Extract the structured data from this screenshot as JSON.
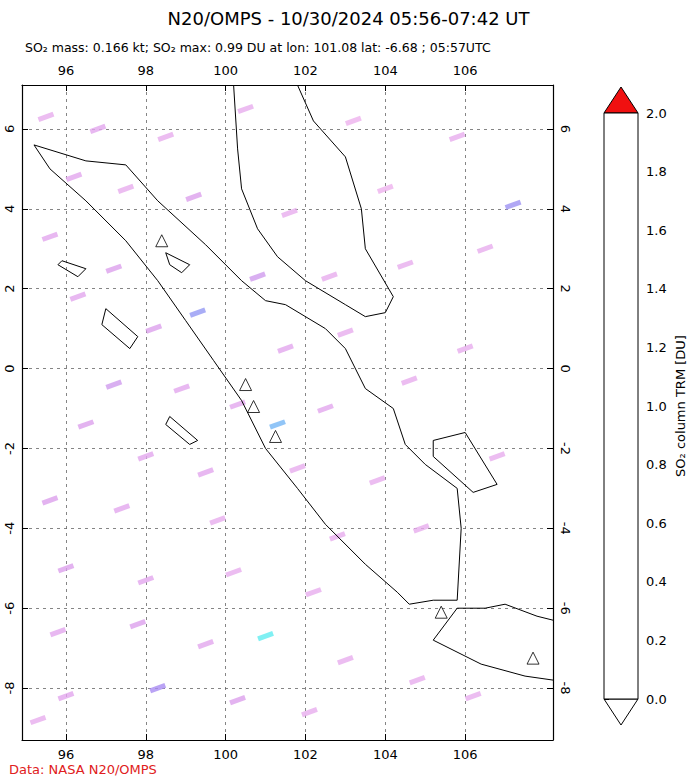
{
  "chart_data": {
    "type": "map",
    "title": "N20/OMPS - 10/30/2024 05:56-07:42 UT",
    "subtitle": "SO₂ mass: 0.166 kt; SO₂ max: 0.99 DU at lon: 101.08 lat: -6.68 ; 05:57UTC",
    "source": "Data: NASA N20/OMPS",
    "xlim": [
      94.9,
      108.2
    ],
    "xticks": [
      96,
      98,
      100,
      102,
      104,
      106
    ],
    "ylim": [
      -9.3,
      7.1
    ],
    "yticks": [
      -8,
      -6,
      -4,
      -2,
      0,
      2,
      4,
      6
    ],
    "grid": true,
    "coastlines": [
      [
        [
          95.2,
          5.6
        ],
        [
          95.6,
          5.0
        ],
        [
          96.5,
          4.2
        ],
        [
          97.5,
          3.2
        ],
        [
          98.3,
          2.2
        ],
        [
          99.0,
          1.2
        ],
        [
          99.7,
          0.2
        ],
        [
          100.4,
          -0.8
        ],
        [
          101.0,
          -2.0
        ],
        [
          101.8,
          -3.0
        ],
        [
          102.5,
          -3.9
        ],
        [
          103.5,
          -4.9
        ],
        [
          104.3,
          -5.6
        ],
        [
          104.6,
          -5.9
        ]
      ],
      [
        [
          95.2,
          5.6
        ],
        [
          96.5,
          5.2
        ],
        [
          97.5,
          5.1
        ],
        [
          98.3,
          4.2
        ],
        [
          99.5,
          3.1
        ],
        [
          100.4,
          2.2
        ],
        [
          101.0,
          1.7
        ],
        [
          101.5,
          1.6
        ],
        [
          102.5,
          1.0
        ],
        [
          103.0,
          0.5
        ],
        [
          103.5,
          -0.5
        ],
        [
          104.2,
          -1.0
        ],
        [
          104.5,
          -1.9
        ],
        [
          105.0,
          -2.4
        ],
        [
          105.8,
          -3.0
        ],
        [
          105.9,
          -4.0
        ],
        [
          105.8,
          -5.8
        ],
        [
          105.2,
          -5.8
        ],
        [
          104.6,
          -5.9
        ]
      ],
      [
        [
          100.2,
          7.1
        ],
        [
          100.3,
          5.5
        ],
        [
          100.4,
          4.5
        ],
        [
          100.8,
          3.5
        ],
        [
          101.3,
          2.8
        ],
        [
          102.0,
          2.2
        ],
        [
          103.0,
          1.6
        ],
        [
          103.5,
          1.3
        ],
        [
          104.0,
          1.4
        ],
        [
          104.2,
          1.8
        ],
        [
          103.5,
          3.0
        ],
        [
          103.4,
          4.0
        ],
        [
          103.0,
          5.3
        ],
        [
          102.2,
          6.2
        ],
        [
          101.8,
          7.1
        ]
      ],
      [
        [
          105.2,
          -6.8
        ],
        [
          105.8,
          -6.0
        ],
        [
          106.5,
          -6.0
        ],
        [
          107.0,
          -5.9
        ],
        [
          107.8,
          -6.2
        ],
        [
          108.2,
          -6.3
        ]
      ],
      [
        [
          105.2,
          -6.8
        ],
        [
          106.4,
          -7.4
        ],
        [
          107.5,
          -7.7
        ],
        [
          108.2,
          -7.8
        ]
      ],
      [
        [
          105.2,
          -1.8
        ],
        [
          106.0,
          -1.6
        ],
        [
          106.8,
          -2.9
        ],
        [
          106.2,
          -3.1
        ],
        [
          105.2,
          -2.2
        ],
        [
          105.2,
          -1.8
        ]
      ],
      [
        [
          97.0,
          1.5
        ],
        [
          97.8,
          0.8
        ],
        [
          97.6,
          0.5
        ],
        [
          96.9,
          1.1
        ],
        [
          97.0,
          1.5
        ]
      ],
      [
        [
          98.6,
          -1.2
        ],
        [
          99.3,
          -1.8
        ],
        [
          99.1,
          -1.9
        ],
        [
          98.5,
          -1.4
        ],
        [
          98.6,
          -1.2
        ]
      ],
      [
        [
          95.9,
          2.7
        ],
        [
          96.5,
          2.5
        ],
        [
          96.3,
          2.3
        ],
        [
          95.8,
          2.6
        ],
        [
          95.9,
          2.7
        ]
      ],
      [
        [
          98.5,
          2.9
        ],
        [
          99.1,
          2.6
        ],
        [
          98.9,
          2.4
        ],
        [
          98.6,
          2.6
        ],
        [
          98.5,
          2.9
        ]
      ]
    ],
    "volcanoes": [
      [
        98.4,
        3.2
      ],
      [
        100.5,
        -0.4
      ],
      [
        100.7,
        -0.95
      ],
      [
        101.25,
        -1.7
      ],
      [
        105.4,
        -6.1
      ],
      [
        107.7,
        -7.25
      ]
    ],
    "pixels": [
      [
        95.5,
        6.3,
        0.3
      ],
      [
        96.8,
        6.0,
        0.35
      ],
      [
        98.5,
        5.8,
        0.3
      ],
      [
        100.5,
        6.5,
        0.3
      ],
      [
        103.2,
        6.2,
        0.25
      ],
      [
        105.8,
        5.8,
        0.3
      ],
      [
        107.2,
        4.1,
        0.65
      ],
      [
        96.2,
        4.8,
        0.35
      ],
      [
        97.5,
        4.5,
        0.3
      ],
      [
        99.2,
        4.3,
        0.4
      ],
      [
        101.6,
        3.9,
        0.3
      ],
      [
        104.0,
        4.5,
        0.25
      ],
      [
        106.5,
        3.0,
        0.3
      ],
      [
        95.6,
        3.3,
        0.35
      ],
      [
        97.2,
        2.5,
        0.4
      ],
      [
        99.3,
        1.4,
        0.7
      ],
      [
        100.8,
        2.3,
        0.45
      ],
      [
        102.6,
        2.3,
        0.3
      ],
      [
        104.5,
        2.6,
        0.3
      ],
      [
        96.3,
        1.8,
        0.35
      ],
      [
        98.2,
        1.0,
        0.4
      ],
      [
        101.5,
        0.5,
        0.35
      ],
      [
        103.0,
        0.9,
        0.3
      ],
      [
        106.0,
        0.5,
        0.3
      ],
      [
        97.2,
        -0.4,
        0.45
      ],
      [
        98.9,
        -0.5,
        0.35
      ],
      [
        100.3,
        -0.9,
        0.35
      ],
      [
        101.3,
        -1.4,
        0.85
      ],
      [
        102.5,
        -1.0,
        0.35
      ],
      [
        104.6,
        -0.3,
        0.3
      ],
      [
        96.5,
        -1.4,
        0.4
      ],
      [
        98.0,
        -2.2,
        0.35
      ],
      [
        99.5,
        -2.6,
        0.35
      ],
      [
        101.8,
        -2.5,
        0.3
      ],
      [
        103.8,
        -2.8,
        0.3
      ],
      [
        106.8,
        -2.2,
        0.3
      ],
      [
        95.6,
        -3.3,
        0.4
      ],
      [
        97.4,
        -3.5,
        0.35
      ],
      [
        99.8,
        -3.8,
        0.3
      ],
      [
        102.8,
        -4.2,
        0.3
      ],
      [
        104.9,
        -4.0,
        0.3
      ],
      [
        96.0,
        -5.0,
        0.4
      ],
      [
        98.0,
        -5.3,
        0.35
      ],
      [
        100.2,
        -5.1,
        0.3
      ],
      [
        102.2,
        -5.6,
        0.3
      ],
      [
        95.8,
        -6.6,
        0.35
      ],
      [
        97.8,
        -6.4,
        0.4
      ],
      [
        99.5,
        -6.9,
        0.35
      ],
      [
        101.0,
        -6.7,
        0.99
      ],
      [
        103.0,
        -7.3,
        0.3
      ],
      [
        104.8,
        -7.8,
        0.3
      ],
      [
        96.0,
        -8.2,
        0.35
      ],
      [
        98.3,
        -8.0,
        0.6
      ],
      [
        100.3,
        -8.3,
        0.4
      ],
      [
        102.1,
        -8.6,
        0.3
      ],
      [
        106.2,
        -8.2,
        0.3
      ],
      [
        95.3,
        -8.8,
        0.3
      ]
    ],
    "colorbar": {
      "label": "SO₂ column TRM [DU]",
      "range": [
        0,
        2
      ],
      "ticks": [
        {
          "value": 0,
          "label": "0.0"
        },
        {
          "value": 0.2,
          "label": "0.2"
        },
        {
          "value": 0.4,
          "label": "0.4"
        },
        {
          "value": 0.6,
          "label": "0.6"
        },
        {
          "value": 0.8,
          "label": "0.8"
        },
        {
          "value": 1,
          "label": "1.0"
        },
        {
          "value": 1.2,
          "label": "1.2"
        },
        {
          "value": 1.4,
          "label": "1.4"
        },
        {
          "value": 1.6,
          "label": "1.6"
        },
        {
          "value": 1.8,
          "label": "1.8"
        },
        {
          "value": 2,
          "label": "2.0"
        }
      ]
    }
  }
}
